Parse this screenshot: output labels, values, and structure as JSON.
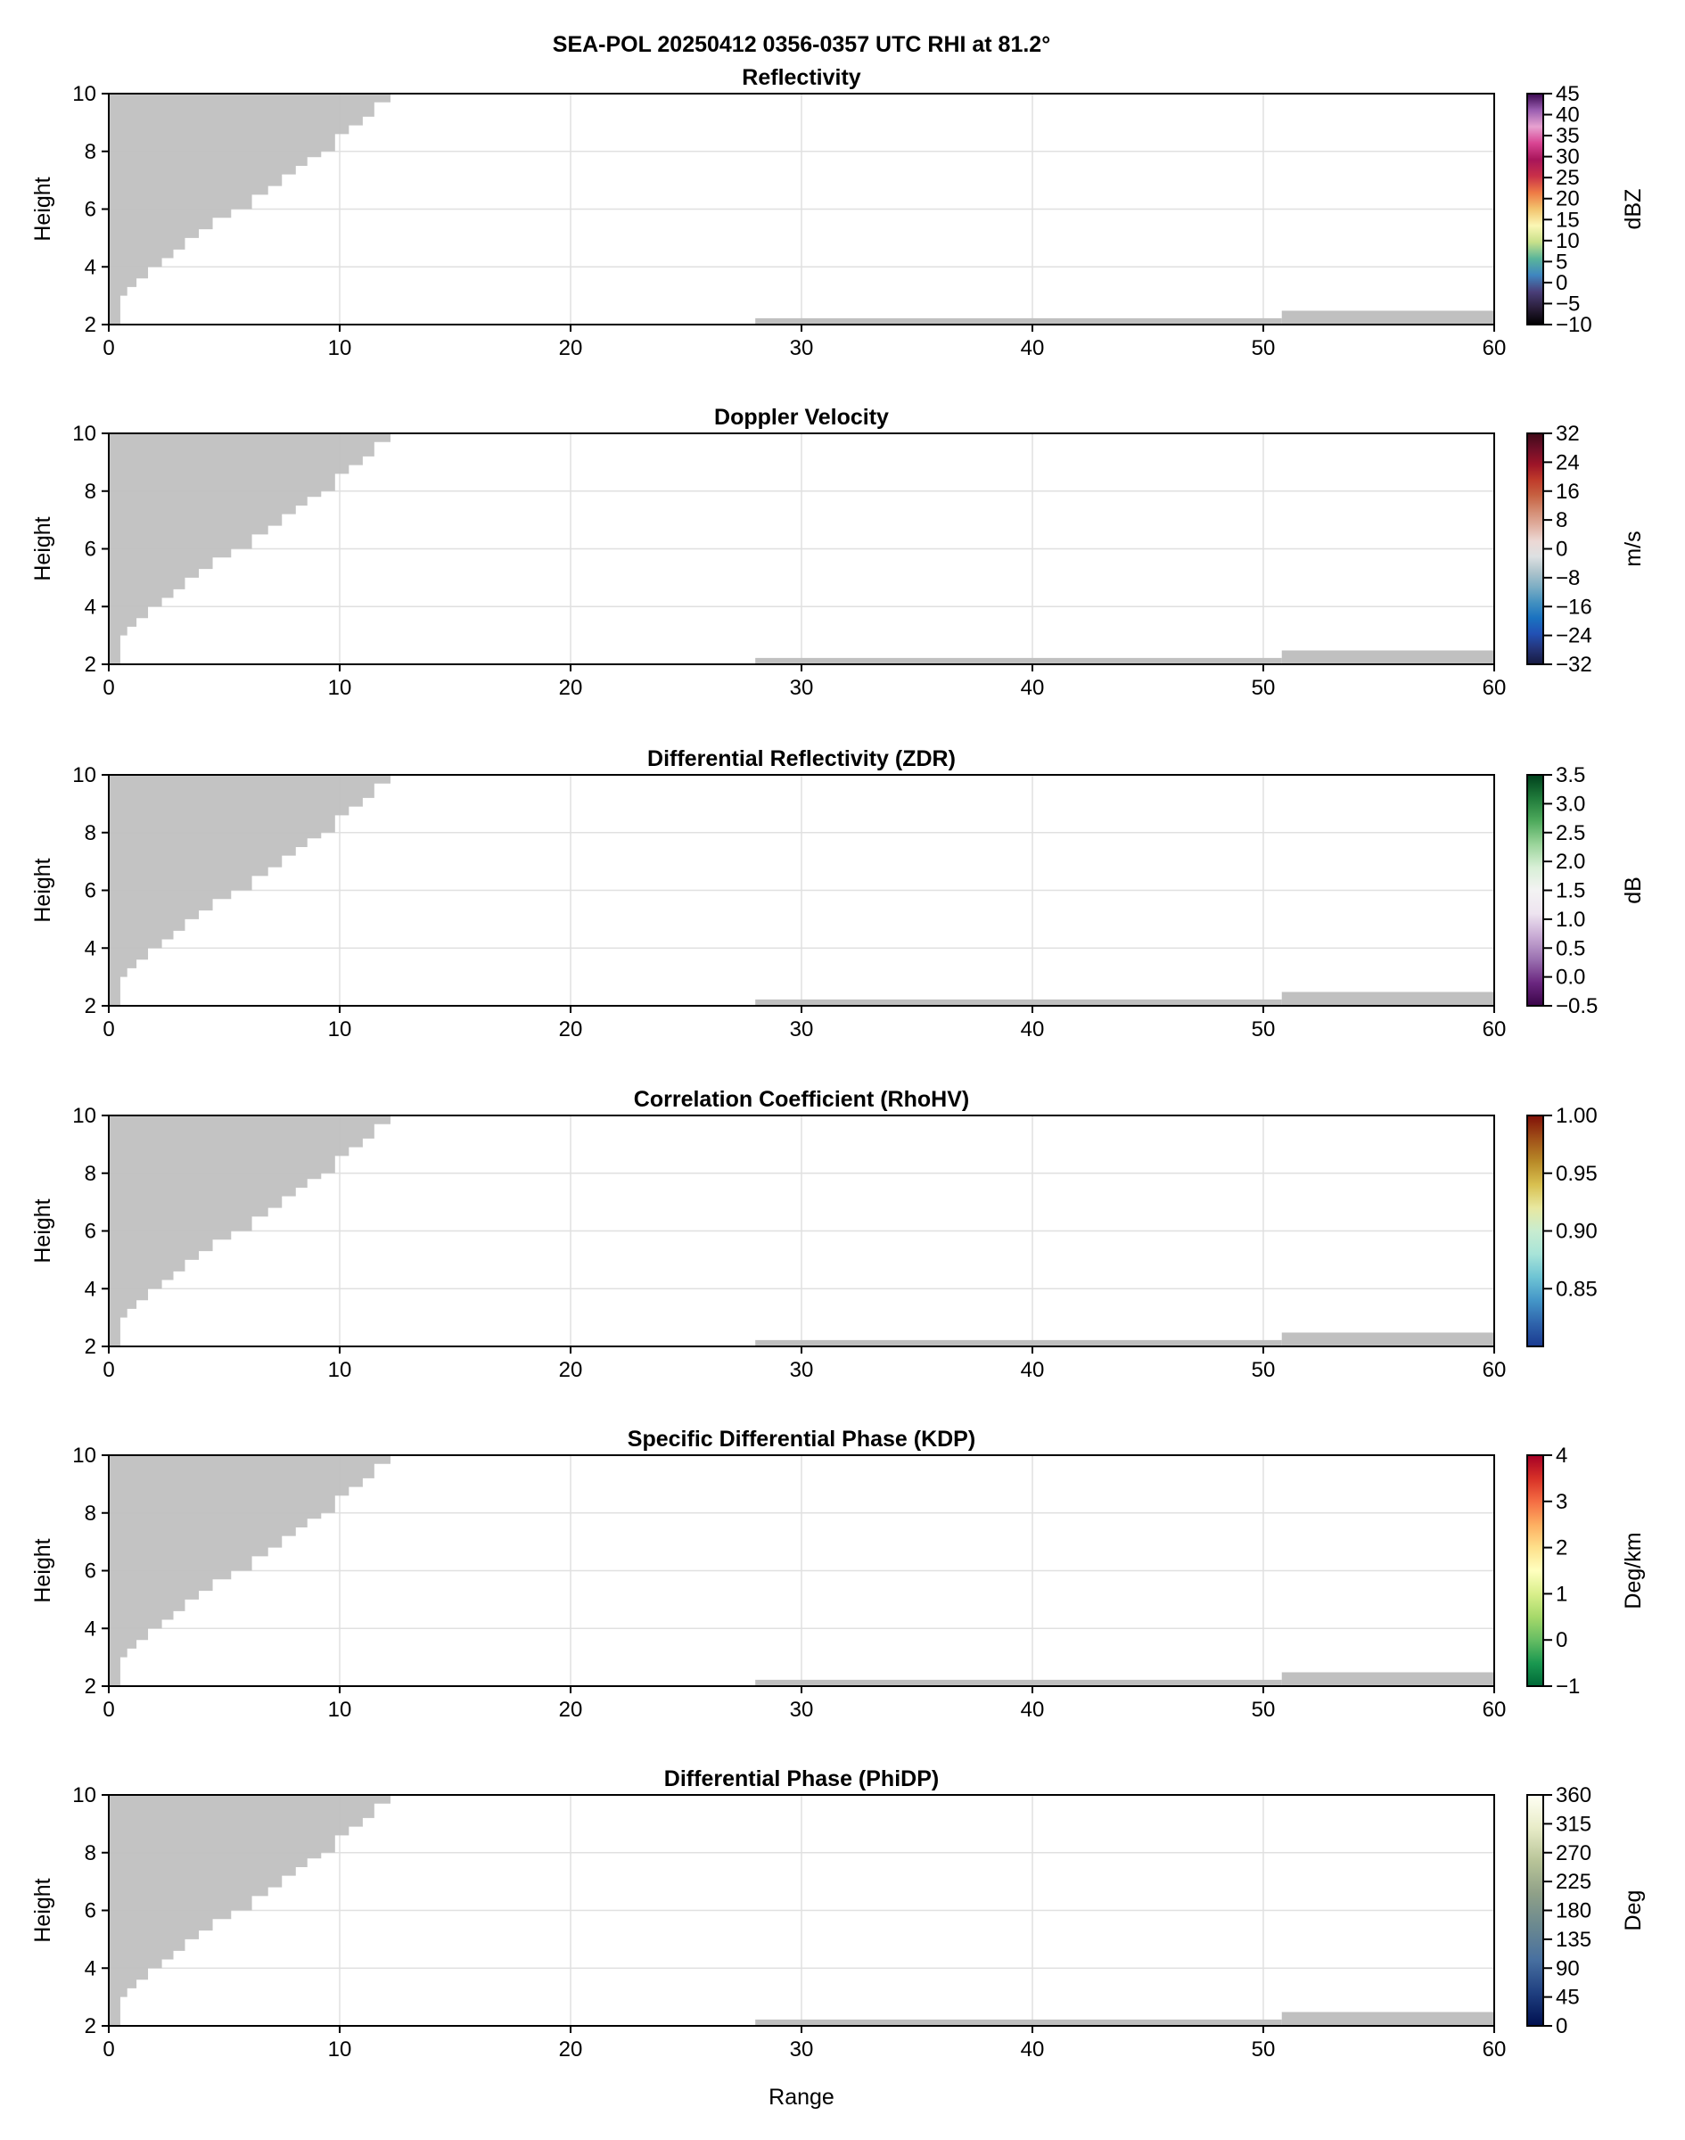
{
  "figure_title": "SEA-POL 20250412 0356-0357 UTC RHI at 81.2°",
  "xlabel": "Range",
  "chart_data": [
    {
      "type": "heatmap",
      "title": "Reflectivity",
      "ylabel": "Height",
      "xlim": [
        0,
        60
      ],
      "ylim": [
        2,
        10
      ],
      "xticks": [
        0,
        10,
        20,
        30,
        40,
        50,
        60
      ],
      "yticks": [
        2,
        4,
        6,
        8,
        10
      ],
      "colorbar": {
        "label": "dBZ",
        "range": [
          -10,
          45
        ],
        "ticks": [
          -10,
          -5,
          0,
          5,
          10,
          15,
          20,
          25,
          30,
          35,
          40,
          45
        ],
        "colors": [
          "#000000",
          "#2a1e3a",
          "#4a3f7a",
          "#3f86c0",
          "#5ab59a",
          "#c8e08a",
          "#fbf7b5",
          "#f2c46e",
          "#ee7a45",
          "#c93048",
          "#a8155a",
          "#d94593",
          "#e7a2d0",
          "#9a5db0",
          "#3a0850"
        ]
      }
    },
    {
      "type": "heatmap",
      "title": "Doppler Velocity",
      "ylabel": "Height",
      "xlim": [
        0,
        60
      ],
      "ylim": [
        2,
        10
      ],
      "xticks": [
        0,
        10,
        20,
        30,
        40,
        50,
        60
      ],
      "yticks": [
        2,
        4,
        6,
        8,
        10
      ],
      "colorbar": {
        "label": "m/s",
        "range": [
          -32,
          32
        ],
        "ticks": [
          -32,
          -24,
          -16,
          -8,
          0,
          8,
          16,
          24,
          32
        ],
        "colors": [
          "#161a40",
          "#243478",
          "#2251b5",
          "#1a72c0",
          "#4290c0",
          "#7badc4",
          "#aec4cc",
          "#dde0e2",
          "#ecd8d4",
          "#e0afa0",
          "#d38a70",
          "#c66040",
          "#bf3a2a",
          "#9c1428",
          "#6e0f28",
          "#400a18"
        ]
      }
    },
    {
      "type": "heatmap",
      "title": "Differential Reflectivity (ZDR)",
      "ylabel": "Height",
      "xlim": [
        0,
        60
      ],
      "ylim": [
        2,
        10
      ],
      "xticks": [
        0,
        10,
        20,
        30,
        40,
        50,
        60
      ],
      "yticks": [
        2,
        4,
        6,
        8,
        10
      ],
      "colorbar": {
        "label": "dB",
        "range": [
          -0.5,
          3.5
        ],
        "ticks": [
          "-0.5",
          "0.0",
          "0.5",
          "1.0",
          "1.5",
          "2.0",
          "2.5",
          "3.0",
          "3.5"
        ],
        "colors": [
          "#3a0448",
          "#6b2780",
          "#9a70b0",
          "#c8aad4",
          "#eee4f0",
          "#f3f3f3",
          "#d8efd6",
          "#9ad49a",
          "#4eaa5c",
          "#1f7a3a",
          "#00401c"
        ]
      }
    },
    {
      "type": "heatmap",
      "title": "Correlation Coefficient (RhoHV)",
      "ylabel": "Height",
      "xlim": [
        0,
        60
      ],
      "ylim": [
        2,
        10
      ],
      "xticks": [
        0,
        10,
        20,
        30,
        40,
        50,
        60
      ],
      "yticks": [
        2,
        4,
        6,
        8,
        10
      ],
      "colorbar": {
        "label": "",
        "range": [
          0.8,
          1.0
        ],
        "ticks": [
          "0.85",
          "0.90",
          "0.95",
          "1.00"
        ],
        "colors": [
          "#1a3a90",
          "#2f64ac",
          "#4496c8",
          "#6ec4d4",
          "#a8e4d8",
          "#c8ecd0",
          "#e8e8a0",
          "#d8c050",
          "#b88a28",
          "#a05018",
          "#801008"
        ]
      }
    },
    {
      "type": "heatmap",
      "title": "Specific Differential Phase (KDP)",
      "ylabel": "Height",
      "xlim": [
        0,
        60
      ],
      "ylim": [
        2,
        10
      ],
      "xticks": [
        0,
        10,
        20,
        30,
        40,
        50,
        60
      ],
      "yticks": [
        2,
        4,
        6,
        8,
        10
      ],
      "colorbar": {
        "label": "Deg/km",
        "range": [
          -1,
          4
        ],
        "ticks": [
          -1,
          0,
          1,
          2,
          3,
          4
        ],
        "colors": [
          "#006837",
          "#1a9850",
          "#66bd63",
          "#a6d96a",
          "#d9ef8b",
          "#ffffbf",
          "#fee08b",
          "#fdae61",
          "#f46d43",
          "#d73027",
          "#a50026"
        ]
      }
    },
    {
      "type": "heatmap",
      "title": "Differential Phase (PhiDP)",
      "ylabel": "Height",
      "xlim": [
        0,
        60
      ],
      "ylim": [
        2,
        10
      ],
      "xticks": [
        0,
        10,
        20,
        30,
        40,
        50,
        60
      ],
      "yticks": [
        2,
        4,
        6,
        8,
        10
      ],
      "colorbar": {
        "label": "Deg",
        "range": [
          0,
          360
        ],
        "ticks": [
          0,
          45,
          90,
          135,
          180,
          225,
          270,
          315,
          360
        ],
        "colors": [
          "#001050",
          "#1f3f80",
          "#4870a0",
          "#6a8890",
          "#8fa088",
          "#b8c498",
          "#e8ecc8",
          "#fffff4"
        ]
      }
    }
  ],
  "mask": {
    "color": "#c0c0c0",
    "upper_boundary": [
      [
        0.5,
        2.0
      ],
      [
        0.5,
        2.7
      ],
      [
        0.8,
        3.0
      ],
      [
        1.2,
        3.3
      ],
      [
        1.7,
        3.6
      ],
      [
        2.3,
        4.0
      ],
      [
        2.8,
        4.3
      ],
      [
        3.3,
        4.6
      ],
      [
        3.9,
        5.0
      ],
      [
        4.5,
        5.3
      ],
      [
        5.3,
        5.7
      ],
      [
        6.2,
        6.0
      ],
      [
        6.9,
        6.5
      ],
      [
        7.5,
        6.8
      ],
      [
        8.1,
        7.2
      ],
      [
        8.6,
        7.5
      ],
      [
        9.2,
        7.8
      ],
      [
        9.8,
        8.0
      ],
      [
        10.4,
        8.6
      ],
      [
        11.0,
        8.9
      ],
      [
        11.5,
        9.2
      ],
      [
        12.2,
        9.7
      ],
      [
        12.7,
        10.0
      ]
    ],
    "ground_blocks": [
      {
        "x": [
          28,
          50.8
        ],
        "top": 2.22
      },
      {
        "x": [
          50.8,
          60
        ],
        "top": 2.48
      }
    ]
  }
}
